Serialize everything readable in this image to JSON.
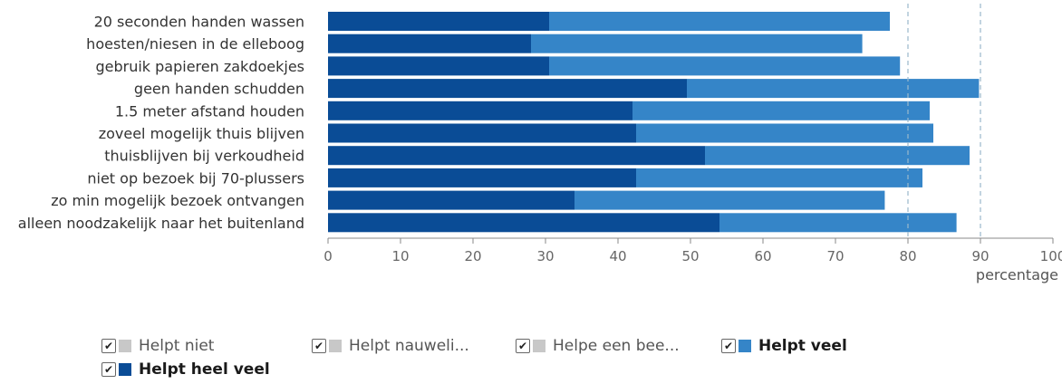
{
  "chart_data": {
    "type": "bar",
    "orientation": "horizontal",
    "stacked": true,
    "categories": [
      "20 seconden handen wassen",
      "hoesten/niesen in de elleboog",
      "gebruik papieren zakdoekjes",
      "geen handen schudden",
      "1.5 meter afstand houden",
      "zoveel mogelijk thuis blijven",
      "thuisblijven bij verkoudheid",
      "niet op bezoek bij 70-plussers",
      "zo min mogelijk bezoek ontvangen",
      "alleen noodzakelijk naar het buitenland"
    ],
    "series": [
      {
        "name": "Helpt heel veel",
        "color": "#0a4c96",
        "values": [
          30.5,
          28,
          30.5,
          49.5,
          42,
          42.5,
          52,
          42.5,
          34,
          54
        ]
      },
      {
        "name": "Helpt veel",
        "color": "#3585c8",
        "values": [
          47,
          45.7,
          48.4,
          40.3,
          41,
          41,
          36.5,
          39.5,
          42.8,
          32.7
        ]
      }
    ],
    "xlabel": "percentage",
    "xlim": [
      0,
      100
    ],
    "xticks": [
      "0",
      "10",
      "20",
      "30",
      "40",
      "50",
      "60",
      "70",
      "80",
      "90",
      "100"
    ],
    "reference_lines": [
      80,
      90
    ],
    "grid": false,
    "legend_position": "bottom"
  },
  "legend": [
    {
      "label": "Helpt niet",
      "color": "#c8c8c8",
      "check": "✔",
      "active": false
    },
    {
      "label": "Helpt nauweli...",
      "color": "#c8c8c8",
      "check": "✔",
      "active": false
    },
    {
      "label": "Helpe een bee...",
      "color": "#c8c8c8",
      "check": "✔",
      "active": false
    },
    {
      "label": "Helpt veel",
      "color": "#3585c8",
      "check": "✔",
      "active": true
    },
    {
      "label": "Helpt heel veel",
      "color": "#0a4c96",
      "check": "✔",
      "active": true
    }
  ]
}
